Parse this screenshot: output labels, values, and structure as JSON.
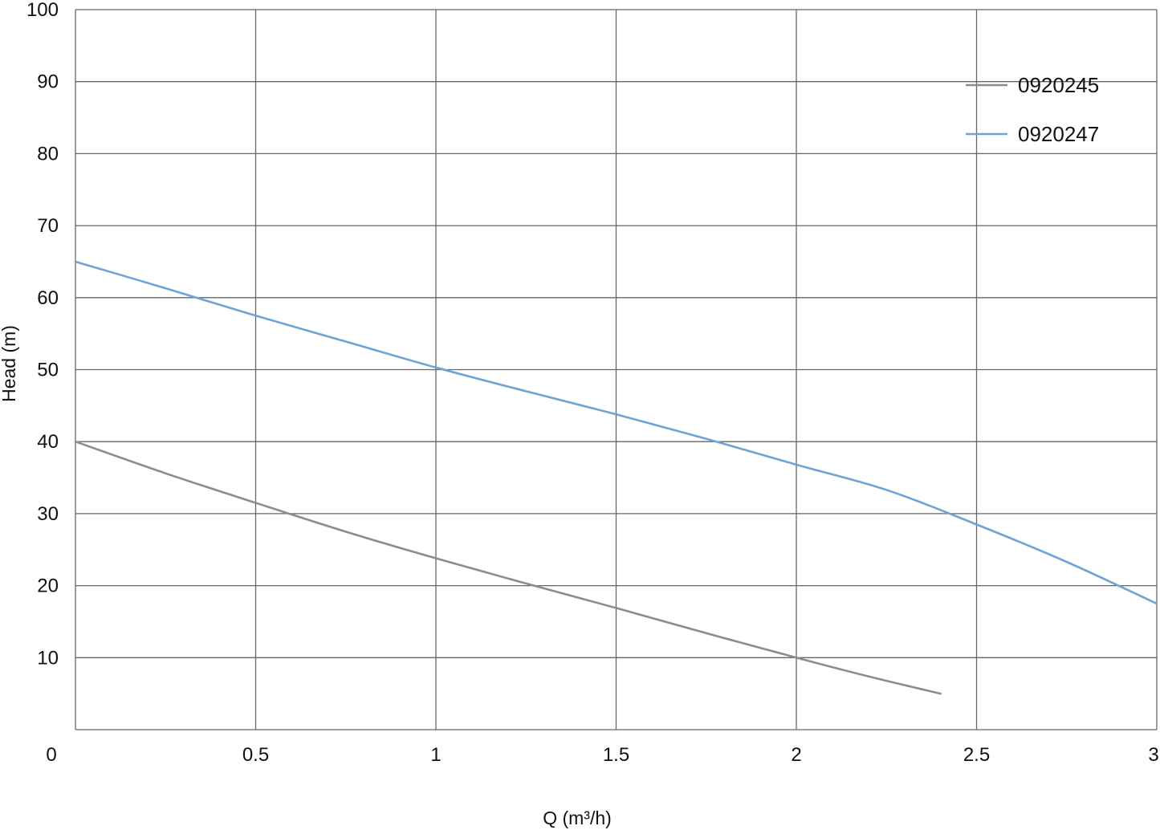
{
  "chart_data": {
    "type": "line",
    "title": "",
    "xlabel": "Q (m³/h)",
    "ylabel": "Head (m)",
    "xlim": [
      0,
      3
    ],
    "ylim": [
      0,
      100
    ],
    "x_ticks": [
      "0",
      "0.5",
      "1",
      "1.5",
      "2",
      "2.5",
      "3"
    ],
    "x_tick_values": [
      0,
      0.5,
      1,
      1.5,
      2,
      2.5,
      3
    ],
    "y_ticks": [
      "10",
      "20",
      "30",
      "40",
      "50",
      "60",
      "70",
      "80",
      "90",
      "100"
    ],
    "y_tick_values": [
      10,
      20,
      30,
      40,
      50,
      60,
      70,
      80,
      90,
      100
    ],
    "grid": true,
    "legend_position": "top-right",
    "series": [
      {
        "name": "0920245",
        "color": "#8c8c8c",
        "x": [
          0,
          0.25,
          0.5,
          0.75,
          1,
          1.25,
          1.5,
          1.75,
          2,
          2.2,
          2.4
        ],
        "y": [
          40,
          35.6,
          31.5,
          27.5,
          23.8,
          20.3,
          16.9,
          13.4,
          10,
          7.4,
          5
        ]
      },
      {
        "name": "0920247",
        "color": "#6fa3d6",
        "x": [
          0,
          0.25,
          0.5,
          0.75,
          1,
          1.25,
          1.5,
          1.75,
          2,
          2.25,
          2.5,
          2.75,
          3
        ],
        "y": [
          65,
          61.3,
          57.5,
          53.9,
          50.3,
          47,
          43.8,
          40.4,
          36.8,
          33.3,
          28.5,
          23.3,
          17.5
        ]
      }
    ]
  }
}
